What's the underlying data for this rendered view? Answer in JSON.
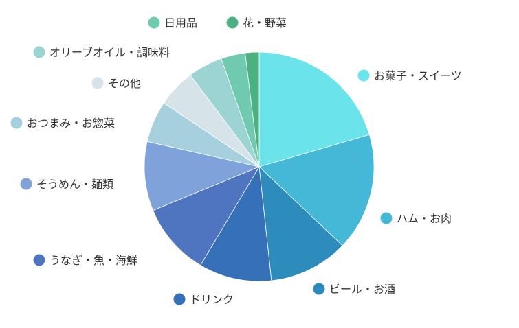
{
  "chart_data": {
    "type": "pie",
    "title": "",
    "slices": [
      {
        "label": "お菓子・スイーツ",
        "value": 21.0,
        "color": "#6ae4ea"
      },
      {
        "label": "ハム・お肉",
        "value": 17.0,
        "color": "#45b8d8"
      },
      {
        "label": "ビール・お酒",
        "value": 11.5,
        "color": "#2e8cbc"
      },
      {
        "label": "ドリンク",
        "value": 10.5,
        "color": "#3570b8"
      },
      {
        "label": "うなぎ・魚・海鮮",
        "value": 10.5,
        "color": "#5075c0"
      },
      {
        "label": "そうめん・麺類",
        "value": 10.0,
        "color": "#80a2da"
      },
      {
        "label": "おつまみ・お惣菜",
        "value": 6.0,
        "color": "#a6d0de"
      },
      {
        "label": "その他",
        "value": 5.5,
        "color": "#d6e4e9"
      },
      {
        "label": "オリーブオイル・調味料",
        "value": 5.0,
        "color": "#9cd3d3"
      },
      {
        "label": "日用品",
        "value": 3.5,
        "color": "#6fcab0"
      },
      {
        "label": "花・野菜",
        "value": 2.0,
        "color": "#4db080"
      }
    ],
    "legend": "labels around pie with colored dots"
  }
}
